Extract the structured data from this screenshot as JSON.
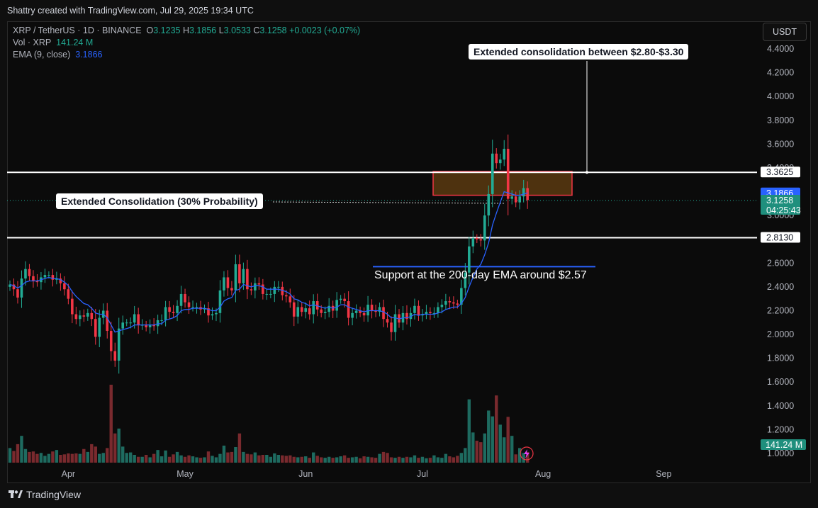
{
  "header": {
    "caption": "Shattry created with TradingView.com, Jul 29, 2025 19:34 UTC",
    "symbol": "XRP / TetherUS · 1D · BINANCE",
    "o_label": "O",
    "o": "3.1235",
    "h_label": "H",
    "h": "3.1856",
    "l_label": "L",
    "l": "3.0533",
    "c_label": "C",
    "c": "3.1258",
    "change": "+0.0023 (+0.07%)",
    "vol_label": "Vol · XRP",
    "vol": "141.24 M",
    "ema_label": "EMA (9, close)",
    "ema": "3.1866",
    "currency": "USDT"
  },
  "footer": {
    "brand": "TradingView"
  },
  "annotations": {
    "top_box": "Extended consolidation between $2.80-$3.30",
    "left_box": "Extended Consolidation (30% Probability)",
    "support_text": "Support at the 200-day EMA around $2.57"
  },
  "colors": {
    "up": "#22ab94",
    "down": "#f23645",
    "ema": "#2962ff",
    "zone_fill": "#5a3a10",
    "zone_border": "#f23645"
  },
  "chart_data": {
    "type": "candlestick",
    "symbol": "XRP / TetherUS",
    "timeframe": "1D",
    "y_axis": {
      "ticks": [
        1.0,
        1.2,
        1.4,
        1.6,
        1.8,
        2.0,
        2.2,
        2.4,
        2.6,
        2.8,
        3.0,
        3.2,
        3.4,
        3.6,
        3.8,
        4.0,
        4.2,
        4.4
      ],
      "range": [
        0.95,
        4.55
      ]
    },
    "x_axis": {
      "labels": [
        "Apr",
        "May",
        "Jun",
        "Jul",
        "Aug",
        "Sep"
      ]
    },
    "price_labels": [
      {
        "value": 3.3625,
        "text": "3.3625",
        "style": "white"
      },
      {
        "value": 3.1866,
        "text": "3.1866",
        "style": "ema"
      },
      {
        "value": 3.1258,
        "text": "3.1258",
        "sub": "04:25:43",
        "style": "up"
      },
      {
        "value": 2.813,
        "text": "2.8130",
        "style": "white"
      }
    ],
    "volume_label": "141.24 M",
    "levels": {
      "resistance": 3.3625,
      "support_line": 2.813,
      "ema200_support": 2.57,
      "current": 3.1258
    },
    "zone": {
      "low": 3.17,
      "high": 3.37
    },
    "close": [
      2.42,
      2.38,
      2.31,
      2.47,
      2.55,
      2.49,
      2.45,
      2.44,
      2.48,
      2.5,
      2.5,
      2.46,
      2.47,
      2.43,
      2.38,
      2.3,
      2.17,
      2.13,
      2.16,
      2.15,
      2.18,
      2.13,
      1.98,
      2.14,
      2.2,
      2.03,
      1.86,
      1.78,
      2.05,
      2.1,
      2.1,
      2.1,
      2.17,
      2.08,
      2.08,
      2.06,
      2.08,
      2.07,
      2.12,
      2.12,
      2.23,
      2.19,
      2.18,
      2.24,
      2.34,
      2.27,
      2.23,
      2.23,
      2.23,
      2.21,
      2.22,
      2.16,
      2.17,
      2.18,
      2.37,
      2.48,
      2.39,
      2.37,
      2.59,
      2.43,
      2.55,
      2.38,
      2.37,
      2.43,
      2.42,
      2.34,
      2.34,
      2.34,
      2.4,
      2.4,
      2.33,
      2.32,
      2.27,
      2.15,
      2.23,
      2.19,
      2.22,
      2.17,
      2.28,
      2.21,
      2.18,
      2.19,
      2.24,
      2.2,
      2.29,
      2.3,
      2.28,
      2.14,
      2.18,
      2.2,
      2.18,
      2.16,
      2.25,
      2.2,
      2.19,
      2.23,
      2.13,
      2.1,
      2.02,
      2.17,
      2.1,
      2.18,
      2.13,
      2.18,
      2.24,
      2.16,
      2.17,
      2.19,
      2.18,
      2.18,
      2.23,
      2.25,
      2.28,
      2.27,
      2.26,
      2.25,
      2.39,
      2.52,
      2.74,
      2.81,
      2.8,
      2.79,
      3.0,
      3.18,
      3.52,
      3.44,
      3.47,
      3.56,
      3.14,
      3.16,
      3.11,
      3.16,
      3.23,
      3.13
    ],
    "volume": [
      0.3,
      0.24,
      0.38,
      0.55,
      0.28,
      0.22,
      0.23,
      0.18,
      0.2,
      0.14,
      0.18,
      0.23,
      0.26,
      0.16,
      0.17,
      0.19,
      0.18,
      0.19,
      0.18,
      0.28,
      0.22,
      0.38,
      0.33,
      0.18,
      0.2,
      0.3,
      1.6,
      0.6,
      0.7,
      0.33,
      0.2,
      0.21,
      0.16,
      0.12,
      0.12,
      0.16,
      0.11,
      0.18,
      0.26,
      0.13,
      0.25,
      0.12,
      0.17,
      0.22,
      0.15,
      0.12,
      0.15,
      0.13,
      0.11,
      0.1,
      0.11,
      0.23,
      0.14,
      0.11,
      0.18,
      0.35,
      0.21,
      0.22,
      0.32,
      0.6,
      0.22,
      0.18,
      0.17,
      0.21,
      0.15,
      0.16,
      0.16,
      0.12,
      0.19,
      0.16,
      0.15,
      0.14,
      0.15,
      0.12,
      0.11,
      0.12,
      0.13,
      0.1,
      0.21,
      0.14,
      0.11,
      0.1,
      0.12,
      0.1,
      0.11,
      0.13,
      0.15,
      0.1,
      0.11,
      0.12,
      0.09,
      0.13,
      0.12,
      0.11,
      0.1,
      0.18,
      0.22,
      0.2,
      0.11,
      0.1,
      0.12,
      0.1,
      0.12,
      0.11,
      0.15,
      0.1,
      0.12,
      0.09,
      0.1,
      0.15,
      0.11,
      0.1,
      0.18,
      0.13,
      0.11,
      0.14,
      0.2,
      0.3,
      1.3,
      0.62,
      0.45,
      0.42,
      0.6,
      1.07,
      0.95,
      1.38,
      0.78,
      0.52,
      0.94,
      0.55,
      0.17,
      0.3,
      0.2,
      0.22
    ],
    "ema9": [
      2.42,
      2.41,
      2.39,
      2.41,
      2.44,
      2.45,
      2.45,
      2.45,
      2.46,
      2.47,
      2.48,
      2.47,
      2.47,
      2.46,
      2.44,
      2.41,
      2.36,
      2.32,
      2.29,
      2.26,
      2.25,
      2.22,
      2.18,
      2.17,
      2.17,
      2.14,
      2.08,
      2.02,
      2.03,
      2.04,
      2.05,
      2.06,
      2.08,
      2.08,
      2.08,
      2.08,
      2.08,
      2.08,
      2.09,
      2.09,
      2.12,
      2.13,
      2.14,
      2.16,
      2.2,
      2.21,
      2.21,
      2.22,
      2.22,
      2.22,
      2.22,
      2.21,
      2.2,
      2.2,
      2.23,
      2.28,
      2.3,
      2.31,
      2.37,
      2.38,
      2.42,
      2.41,
      2.4,
      2.41,
      2.41,
      2.4,
      2.38,
      2.38,
      2.38,
      2.38,
      2.37,
      2.36,
      2.34,
      2.3,
      2.29,
      2.27,
      2.26,
      2.24,
      2.25,
      2.24,
      2.23,
      2.22,
      2.23,
      2.22,
      2.23,
      2.25,
      2.25,
      2.23,
      2.22,
      2.21,
      2.2,
      2.19,
      2.2,
      2.2,
      2.2,
      2.2,
      2.19,
      2.17,
      2.14,
      2.14,
      2.13,
      2.14,
      2.14,
      2.15,
      2.17,
      2.16,
      2.17,
      2.17,
      2.17,
      2.17,
      2.18,
      2.19,
      2.21,
      2.22,
      2.23,
      2.23,
      2.26,
      2.31,
      2.4,
      2.48,
      2.55,
      2.59,
      2.67,
      2.77,
      2.92,
      3.02,
      3.11,
      3.2,
      3.19,
      3.18,
      3.17,
      3.17,
      3.18,
      3.19
    ]
  }
}
